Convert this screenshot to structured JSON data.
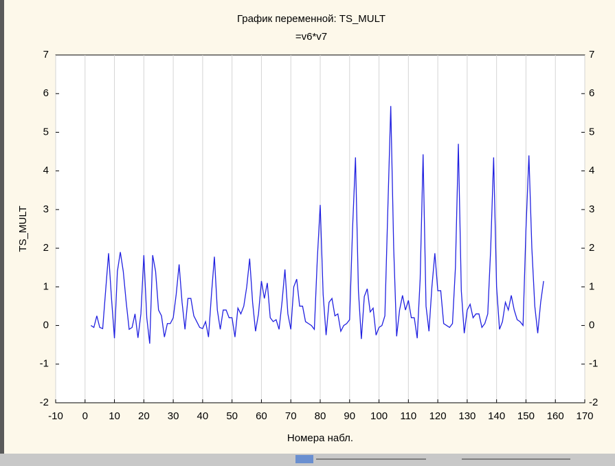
{
  "chart_data": {
    "type": "line",
    "title": "График переменной: TS_MULT",
    "subtitle": "=v6*v7",
    "x_label": "Номера набл.",
    "y_label": "TS_MULT",
    "xlim": [
      -10,
      170
    ],
    "xticks": [
      -10,
      0,
      10,
      20,
      30,
      40,
      50,
      60,
      70,
      80,
      90,
      100,
      110,
      120,
      130,
      140,
      150,
      160,
      170
    ],
    "ylim": [
      -2,
      7
    ],
    "yticks": [
      -2,
      -1,
      0,
      1,
      2,
      3,
      4,
      5,
      6,
      7
    ],
    "grid": true,
    "series": [
      {
        "name": "TS_MULT",
        "color": "#2020e0",
        "x": [
          2,
          3,
          4,
          5,
          6,
          7,
          8,
          9,
          10,
          11,
          12,
          13,
          14,
          15,
          16,
          17,
          18,
          19,
          20,
          21,
          22,
          23,
          24,
          25,
          26,
          27,
          28,
          29,
          30,
          31,
          32,
          33,
          34,
          35,
          36,
          37,
          38,
          39,
          40,
          41,
          42,
          43,
          44,
          45,
          46,
          47,
          48,
          49,
          50,
          51,
          52,
          53,
          54,
          55,
          56,
          57,
          58,
          59,
          60,
          61,
          62,
          63,
          64,
          65,
          66,
          67,
          68,
          69,
          70,
          71,
          72,
          73,
          74,
          75,
          76,
          77,
          78,
          79,
          80,
          81,
          82,
          83,
          84,
          85,
          86,
          87,
          88,
          89,
          90,
          91,
          92,
          93,
          94,
          95,
          96,
          97,
          98,
          99,
          100,
          101,
          102,
          103,
          104,
          105,
          106,
          107,
          108,
          109,
          110,
          111,
          112,
          113,
          114,
          115,
          116,
          117,
          118,
          119,
          120,
          121,
          122,
          123,
          124,
          125,
          126,
          127,
          128,
          129,
          130,
          131,
          132,
          133,
          134,
          135,
          136,
          137,
          138,
          139,
          140,
          141,
          142,
          143,
          144,
          145,
          146,
          147,
          148,
          149,
          150,
          151,
          152,
          153,
          154,
          155,
          156
        ],
        "values": [
          0.0,
          -0.05,
          0.25,
          -0.05,
          -0.08,
          0.9,
          1.87,
          0.7,
          -0.33,
          1.4,
          1.9,
          1.4,
          0.6,
          -0.1,
          -0.05,
          0.3,
          -0.32,
          0.3,
          1.82,
          0.2,
          -0.47,
          1.82,
          1.4,
          0.4,
          0.25,
          -0.3,
          0.05,
          0.05,
          0.2,
          0.8,
          1.58,
          0.6,
          -0.1,
          0.7,
          0.7,
          0.25,
          0.1,
          -0.05,
          -0.08,
          0.1,
          -0.3,
          0.8,
          1.78,
          0.4,
          -0.1,
          0.4,
          0.4,
          0.2,
          0.2,
          -0.3,
          0.45,
          0.3,
          0.5,
          1.0,
          1.73,
          0.6,
          -0.15,
          0.3,
          1.15,
          0.7,
          1.1,
          0.2,
          0.1,
          0.15,
          -0.1,
          0.6,
          1.45,
          0.3,
          -0.1,
          1.0,
          1.2,
          0.5,
          0.5,
          0.1,
          0.05,
          0.0,
          -0.1,
          1.7,
          3.12,
          0.8,
          -0.25,
          0.6,
          0.7,
          0.25,
          0.3,
          -0.15,
          0.0,
          0.05,
          0.15,
          2.5,
          4.35,
          0.9,
          -0.35,
          0.75,
          0.95,
          0.35,
          0.45,
          -0.25,
          -0.05,
          0.0,
          0.25,
          3.0,
          5.68,
          2.0,
          -0.28,
          0.4,
          0.78,
          0.4,
          0.65,
          0.2,
          0.2,
          -0.33,
          1.2,
          4.43,
          0.5,
          -0.15,
          1.0,
          1.87,
          0.9,
          0.9,
          0.05,
          0.0,
          -0.05,
          0.05,
          1.5,
          4.7,
          0.9,
          -0.2,
          0.4,
          0.55,
          0.2,
          0.3,
          0.3,
          -0.05,
          0.05,
          0.3,
          2.0,
          4.35,
          1.0,
          -0.1,
          0.1,
          0.6,
          0.4,
          0.78,
          0.4,
          0.15,
          0.1,
          0.0,
          2.5,
          4.4,
          2.0,
          0.5,
          -0.2,
          0.6,
          1.15
        ]
      }
    ]
  }
}
